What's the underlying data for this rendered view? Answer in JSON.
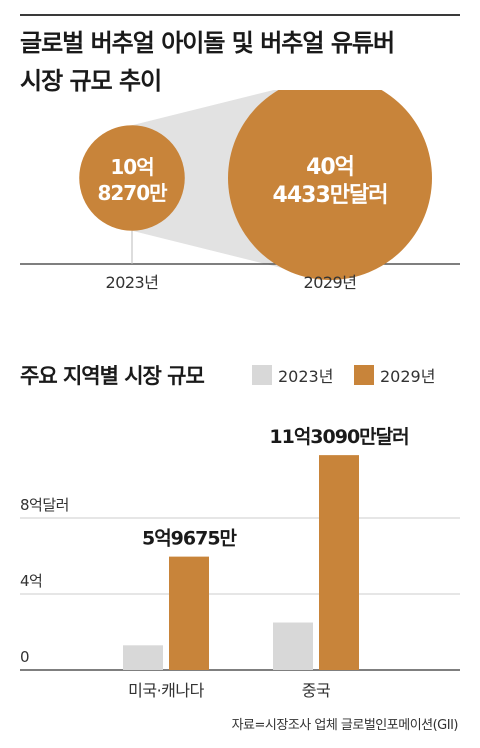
{
  "header": {
    "title_line1": "글로벌 버추얼 아이돌 및 버추얼 유튜버",
    "title_line2": "시장 규모 추이"
  },
  "colors": {
    "accent": "#c8843a",
    "grey": "#d8d8d8",
    "cone": "#e2e2e2",
    "grid": "#cccccc"
  },
  "chart_data": [
    {
      "type": "bubble",
      "title": "글로벌 버추얼 아이돌 및 버추얼 유튜버 시장 규모 추이",
      "categories": [
        "2023년",
        "2029년"
      ],
      "values_krw_100m": [
        10.827,
        40.4433
      ],
      "labels": [
        [
          "10억",
          "8270만"
        ],
        [
          "40억",
          "4433만달러"
        ]
      ]
    },
    {
      "type": "bar",
      "title": "주요 지역별 시장 규모",
      "categories": [
        "미국·캐나다",
        "중국"
      ],
      "series": [
        {
          "name": "2023년",
          "values": [
            1.3,
            2.5
          ]
        },
        {
          "name": "2029년",
          "values": [
            5.9675,
            11.309
          ]
        }
      ],
      "data_labels": {
        "2029년": [
          "5억9675만",
          "11억3090만달러"
        ]
      },
      "ylim": [
        0,
        12
      ],
      "yticks": [
        0,
        4,
        8
      ],
      "ytick_labels": [
        "0",
        "4억",
        "8억달러"
      ]
    }
  ],
  "source": "자료=시장조사 업체 글로벌인포메이션(GII)"
}
